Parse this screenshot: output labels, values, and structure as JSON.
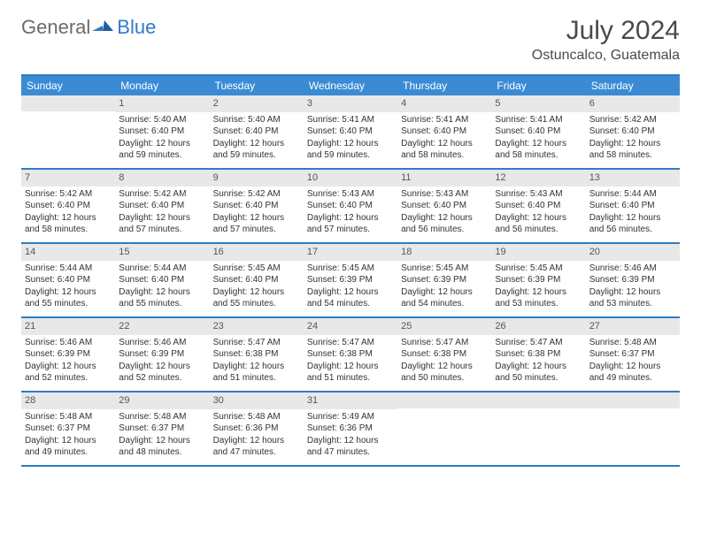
{
  "logo": {
    "text1": "General",
    "text2": "Blue"
  },
  "title": "July 2024",
  "location": "Ostuncalco, Guatemala",
  "colors": {
    "header_bg": "#3b8bd4",
    "border": "#2f7cc4",
    "daynum_bg": "#e8e8e8",
    "text": "#333333",
    "logo_gray": "#6b6b6b"
  },
  "weekdays": [
    "Sunday",
    "Monday",
    "Tuesday",
    "Wednesday",
    "Thursday",
    "Friday",
    "Saturday"
  ],
  "weeks": [
    [
      {
        "n": "",
        "sr": "",
        "ss": "",
        "dl1": "",
        "dl2": ""
      },
      {
        "n": "1",
        "sr": "Sunrise: 5:40 AM",
        "ss": "Sunset: 6:40 PM",
        "dl1": "Daylight: 12 hours",
        "dl2": "and 59 minutes."
      },
      {
        "n": "2",
        "sr": "Sunrise: 5:40 AM",
        "ss": "Sunset: 6:40 PM",
        "dl1": "Daylight: 12 hours",
        "dl2": "and 59 minutes."
      },
      {
        "n": "3",
        "sr": "Sunrise: 5:41 AM",
        "ss": "Sunset: 6:40 PM",
        "dl1": "Daylight: 12 hours",
        "dl2": "and 59 minutes."
      },
      {
        "n": "4",
        "sr": "Sunrise: 5:41 AM",
        "ss": "Sunset: 6:40 PM",
        "dl1": "Daylight: 12 hours",
        "dl2": "and 58 minutes."
      },
      {
        "n": "5",
        "sr": "Sunrise: 5:41 AM",
        "ss": "Sunset: 6:40 PM",
        "dl1": "Daylight: 12 hours",
        "dl2": "and 58 minutes."
      },
      {
        "n": "6",
        "sr": "Sunrise: 5:42 AM",
        "ss": "Sunset: 6:40 PM",
        "dl1": "Daylight: 12 hours",
        "dl2": "and 58 minutes."
      }
    ],
    [
      {
        "n": "7",
        "sr": "Sunrise: 5:42 AM",
        "ss": "Sunset: 6:40 PM",
        "dl1": "Daylight: 12 hours",
        "dl2": "and 58 minutes."
      },
      {
        "n": "8",
        "sr": "Sunrise: 5:42 AM",
        "ss": "Sunset: 6:40 PM",
        "dl1": "Daylight: 12 hours",
        "dl2": "and 57 minutes."
      },
      {
        "n": "9",
        "sr": "Sunrise: 5:42 AM",
        "ss": "Sunset: 6:40 PM",
        "dl1": "Daylight: 12 hours",
        "dl2": "and 57 minutes."
      },
      {
        "n": "10",
        "sr": "Sunrise: 5:43 AM",
        "ss": "Sunset: 6:40 PM",
        "dl1": "Daylight: 12 hours",
        "dl2": "and 57 minutes."
      },
      {
        "n": "11",
        "sr": "Sunrise: 5:43 AM",
        "ss": "Sunset: 6:40 PM",
        "dl1": "Daylight: 12 hours",
        "dl2": "and 56 minutes."
      },
      {
        "n": "12",
        "sr": "Sunrise: 5:43 AM",
        "ss": "Sunset: 6:40 PM",
        "dl1": "Daylight: 12 hours",
        "dl2": "and 56 minutes."
      },
      {
        "n": "13",
        "sr": "Sunrise: 5:44 AM",
        "ss": "Sunset: 6:40 PM",
        "dl1": "Daylight: 12 hours",
        "dl2": "and 56 minutes."
      }
    ],
    [
      {
        "n": "14",
        "sr": "Sunrise: 5:44 AM",
        "ss": "Sunset: 6:40 PM",
        "dl1": "Daylight: 12 hours",
        "dl2": "and 55 minutes."
      },
      {
        "n": "15",
        "sr": "Sunrise: 5:44 AM",
        "ss": "Sunset: 6:40 PM",
        "dl1": "Daylight: 12 hours",
        "dl2": "and 55 minutes."
      },
      {
        "n": "16",
        "sr": "Sunrise: 5:45 AM",
        "ss": "Sunset: 6:40 PM",
        "dl1": "Daylight: 12 hours",
        "dl2": "and 55 minutes."
      },
      {
        "n": "17",
        "sr": "Sunrise: 5:45 AM",
        "ss": "Sunset: 6:39 PM",
        "dl1": "Daylight: 12 hours",
        "dl2": "and 54 minutes."
      },
      {
        "n": "18",
        "sr": "Sunrise: 5:45 AM",
        "ss": "Sunset: 6:39 PM",
        "dl1": "Daylight: 12 hours",
        "dl2": "and 54 minutes."
      },
      {
        "n": "19",
        "sr": "Sunrise: 5:45 AM",
        "ss": "Sunset: 6:39 PM",
        "dl1": "Daylight: 12 hours",
        "dl2": "and 53 minutes."
      },
      {
        "n": "20",
        "sr": "Sunrise: 5:46 AM",
        "ss": "Sunset: 6:39 PM",
        "dl1": "Daylight: 12 hours",
        "dl2": "and 53 minutes."
      }
    ],
    [
      {
        "n": "21",
        "sr": "Sunrise: 5:46 AM",
        "ss": "Sunset: 6:39 PM",
        "dl1": "Daylight: 12 hours",
        "dl2": "and 52 minutes."
      },
      {
        "n": "22",
        "sr": "Sunrise: 5:46 AM",
        "ss": "Sunset: 6:39 PM",
        "dl1": "Daylight: 12 hours",
        "dl2": "and 52 minutes."
      },
      {
        "n": "23",
        "sr": "Sunrise: 5:47 AM",
        "ss": "Sunset: 6:38 PM",
        "dl1": "Daylight: 12 hours",
        "dl2": "and 51 minutes."
      },
      {
        "n": "24",
        "sr": "Sunrise: 5:47 AM",
        "ss": "Sunset: 6:38 PM",
        "dl1": "Daylight: 12 hours",
        "dl2": "and 51 minutes."
      },
      {
        "n": "25",
        "sr": "Sunrise: 5:47 AM",
        "ss": "Sunset: 6:38 PM",
        "dl1": "Daylight: 12 hours",
        "dl2": "and 50 minutes."
      },
      {
        "n": "26",
        "sr": "Sunrise: 5:47 AM",
        "ss": "Sunset: 6:38 PM",
        "dl1": "Daylight: 12 hours",
        "dl2": "and 50 minutes."
      },
      {
        "n": "27",
        "sr": "Sunrise: 5:48 AM",
        "ss": "Sunset: 6:37 PM",
        "dl1": "Daylight: 12 hours",
        "dl2": "and 49 minutes."
      }
    ],
    [
      {
        "n": "28",
        "sr": "Sunrise: 5:48 AM",
        "ss": "Sunset: 6:37 PM",
        "dl1": "Daylight: 12 hours",
        "dl2": "and 49 minutes."
      },
      {
        "n": "29",
        "sr": "Sunrise: 5:48 AM",
        "ss": "Sunset: 6:37 PM",
        "dl1": "Daylight: 12 hours",
        "dl2": "and 48 minutes."
      },
      {
        "n": "30",
        "sr": "Sunrise: 5:48 AM",
        "ss": "Sunset: 6:36 PM",
        "dl1": "Daylight: 12 hours",
        "dl2": "and 47 minutes."
      },
      {
        "n": "31",
        "sr": "Sunrise: 5:49 AM",
        "ss": "Sunset: 6:36 PM",
        "dl1": "Daylight: 12 hours",
        "dl2": "and 47 minutes."
      },
      {
        "n": "",
        "sr": "",
        "ss": "",
        "dl1": "",
        "dl2": ""
      },
      {
        "n": "",
        "sr": "",
        "ss": "",
        "dl1": "",
        "dl2": ""
      },
      {
        "n": "",
        "sr": "",
        "ss": "",
        "dl1": "",
        "dl2": ""
      }
    ]
  ]
}
